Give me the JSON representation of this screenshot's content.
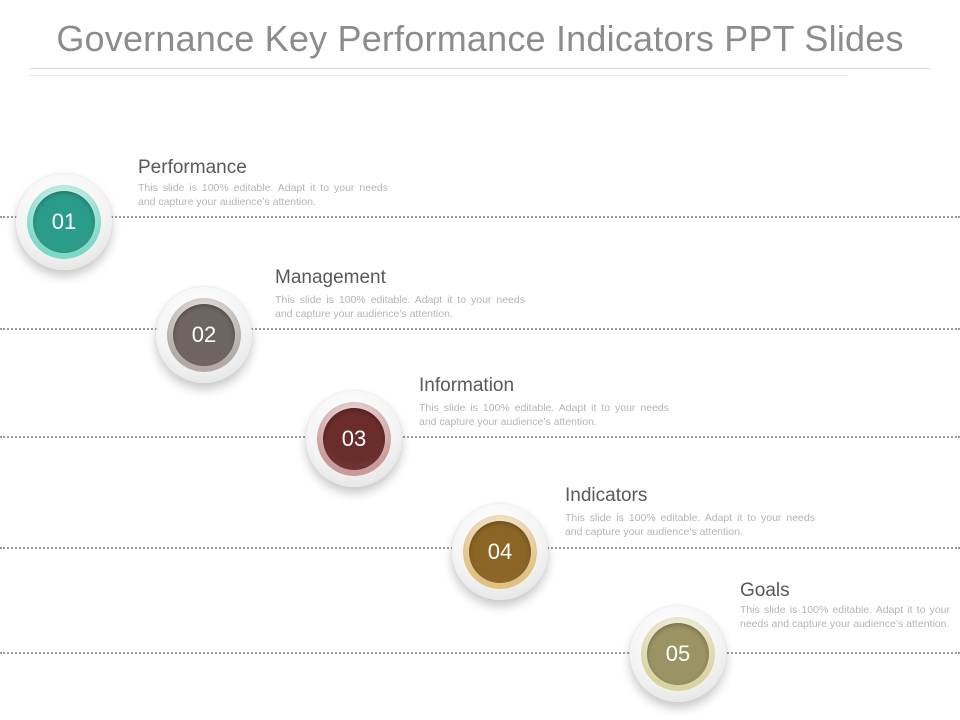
{
  "title": "Governance Key Performance Indicators PPT Slides",
  "steps": [
    {
      "number": "01",
      "heading": "Performance",
      "text": "This slide is 100% editable. Adapt it to your needs and capture your audience’s attention.",
      "ring_color": "#7fd8c6",
      "disc_color": "#2a9d8a"
    },
    {
      "number": "02",
      "heading": "Management",
      "text": "This slide is 100% editable. Adapt it to your needs and capture your audience’s attention.",
      "ring_color": "#b3aaa6",
      "disc_color": "#6e6460"
    },
    {
      "number": "03",
      "heading": "Information",
      "text": "This slide is 100% editable. Adapt it to your needs and capture your audience’s attention.",
      "ring_color": "#c99a9a",
      "disc_color": "#6b2c2c"
    },
    {
      "number": "04",
      "heading": "Indicators",
      "text": "This slide is 100% editable. Adapt it to your needs and capture your audience’s attention.",
      "ring_color": "#e0c083",
      "disc_color": "#8c6423"
    },
    {
      "number": "05",
      "heading": "Goals",
      "text": "This slide is 100% editable. Adapt it to your needs and capture your audience’s attention.",
      "ring_color": "#d9d3a4",
      "disc_color": "#9b9363"
    }
  ]
}
